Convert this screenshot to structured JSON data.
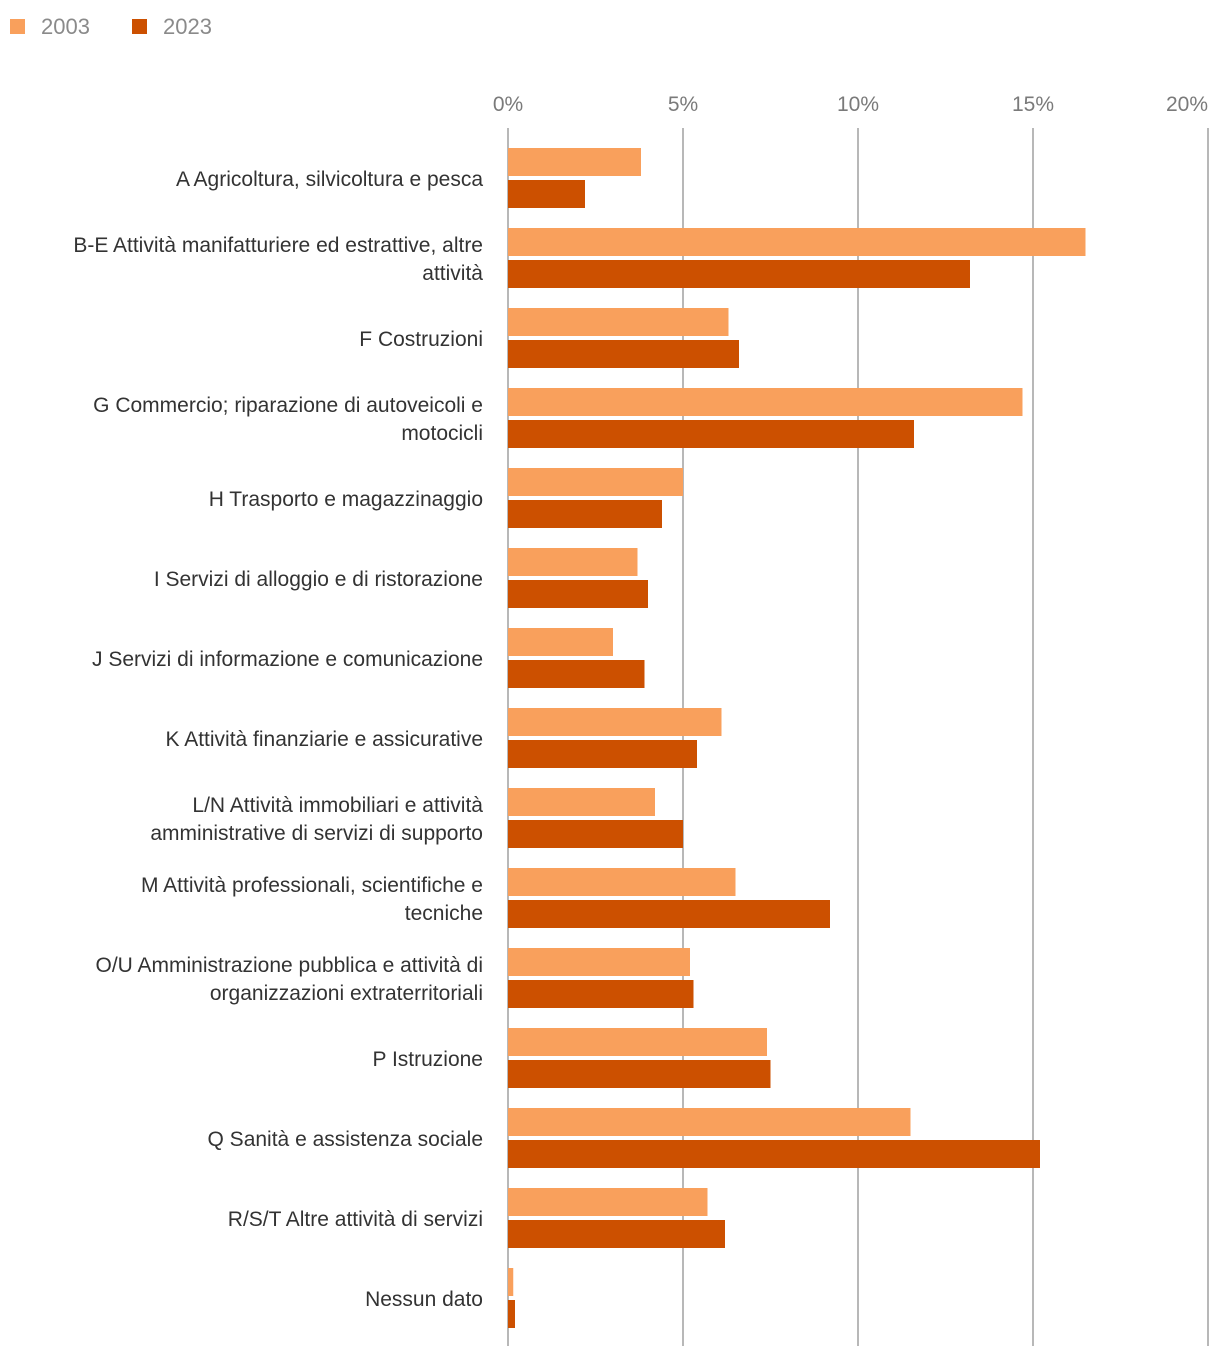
{
  "chart_data": {
    "type": "bar",
    "orientation": "horizontal",
    "title": "",
    "xlabel": "",
    "ylabel": "",
    "xlim": [
      0,
      20
    ],
    "tick_values": [
      0,
      5,
      10,
      15,
      20
    ],
    "tick_labels": [
      "0%",
      "5%",
      "10%",
      "15%",
      "20%"
    ],
    "grid": true,
    "legend_position": "top-left",
    "categories": [
      [
        "A Agricoltura, silvicoltura e pesca"
      ],
      [
        "B-E Attività manifatturiere ed estrattive, altre",
        "attività"
      ],
      [
        "F Costruzioni"
      ],
      [
        "G Commercio; riparazione di autoveicoli e",
        "motocicli"
      ],
      [
        "H Trasporto e magazzinaggio"
      ],
      [
        "I Servizi di alloggio e di ristorazione"
      ],
      [
        "J Servizi di informazione e comunicazione"
      ],
      [
        "K Attività finanziarie e assicurative"
      ],
      [
        "L/N Attività immobiliari e attività",
        "amministrative di servizi di supporto"
      ],
      [
        "M Attività professionali, scientifiche e",
        "tecniche"
      ],
      [
        "O/U Amministrazione pubblica e attività di",
        "organizzazioni extraterritoriali"
      ],
      [
        "P Istruzione"
      ],
      [
        "Q Sanità e assistenza sociale"
      ],
      [
        "R/S/T Altre attività di servizi"
      ],
      [
        "Nessun dato"
      ]
    ],
    "series": [
      {
        "name": "2003",
        "color": "#f9a05c",
        "values": [
          3.8,
          16.5,
          6.3,
          14.7,
          5.0,
          3.7,
          3.0,
          6.1,
          4.2,
          6.5,
          5.2,
          7.4,
          11.5,
          5.7,
          0.15
        ]
      },
      {
        "name": "2023",
        "color": "#cc5000",
        "values": [
          2.2,
          13.2,
          6.6,
          11.6,
          4.4,
          4.0,
          3.9,
          5.4,
          5.0,
          9.2,
          5.3,
          7.5,
          15.2,
          6.2,
          0.2
        ]
      }
    ]
  }
}
